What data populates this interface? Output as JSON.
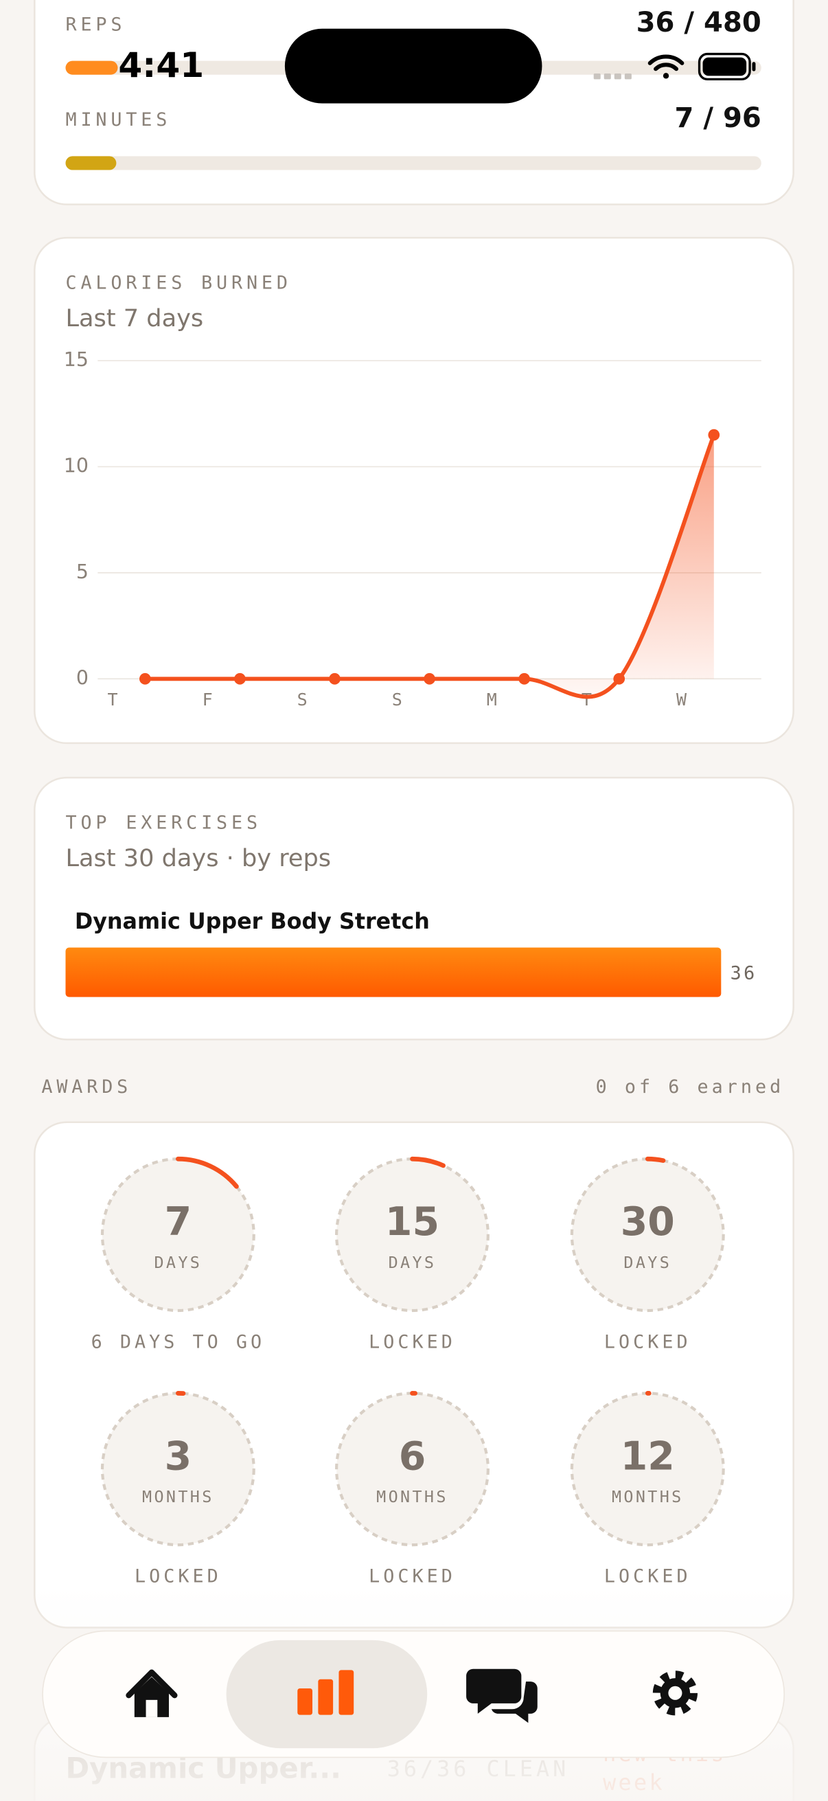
{
  "status_bar": {
    "time": "4:41"
  },
  "goals": [
    {
      "label": "REPS",
      "text": "36 / 480",
      "value": 36,
      "target": 480,
      "color": "#ff8c1f"
    },
    {
      "label": "MINUTES",
      "text": "7 / 96",
      "value": 7,
      "target": 96,
      "color": "#d2a514"
    }
  ],
  "calories": {
    "type": "line",
    "title": "CALORIES BURNED",
    "subtitle": "Last 7 days",
    "categories": [
      "T",
      "F",
      "S",
      "S",
      "M",
      "T",
      "W"
    ],
    "values": [
      0,
      0,
      0,
      0,
      0,
      0,
      11.5
    ],
    "color": "#f4511e",
    "ylim": [
      0,
      15
    ],
    "yticks": [
      0,
      5,
      10,
      15
    ],
    "grid": true
  },
  "top_exercises": {
    "type": "bar",
    "title": "TOP EXERCISES",
    "subtitle": "Last 30 days · by reps",
    "categories": [
      "Dynamic Upper Body Stretch"
    ],
    "values": [
      36
    ],
    "color": "#ff6a00"
  },
  "awards": {
    "title": "AWARDS",
    "summary": "0 of 6 earned",
    "items": [
      {
        "number": 7,
        "unit": "DAYS",
        "status": "6 DAYS TO GO",
        "progress": 0.14
      },
      {
        "number": 15,
        "unit": "DAYS",
        "status": "LOCKED",
        "progress": 0.067
      },
      {
        "number": 30,
        "unit": "DAYS",
        "status": "LOCKED",
        "progress": 0.033
      },
      {
        "number": 3,
        "unit": "MONTHS",
        "status": "LOCKED",
        "progress": 0.011
      },
      {
        "number": 6,
        "unit": "MONTHS",
        "status": "LOCKED",
        "progress": 0.006
      },
      {
        "number": 12,
        "unit": "MONTHS",
        "status": "LOCKED",
        "progress": 0.003
      }
    ]
  },
  "peek": {
    "title": "Dynamic Upper...",
    "stats": "36/36 CLEAN",
    "note_lines": [
      "new this",
      "week"
    ]
  }
}
